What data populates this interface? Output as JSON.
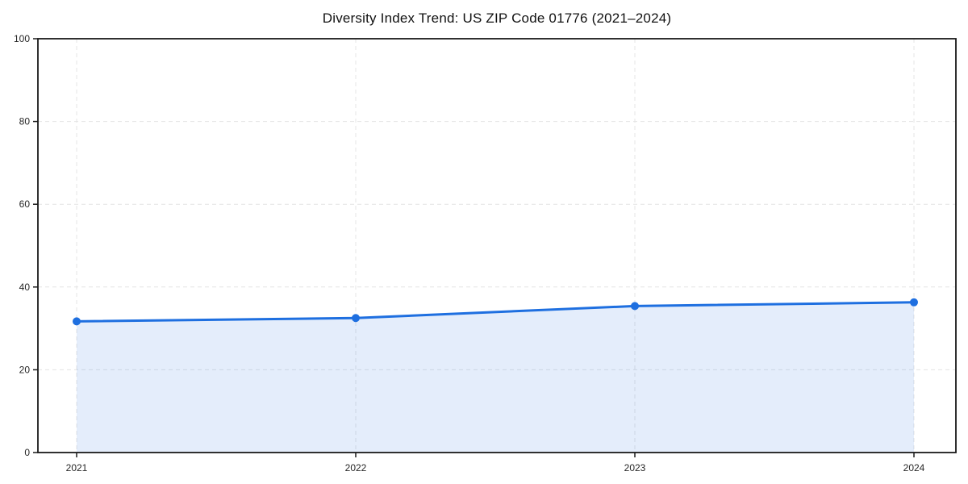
{
  "page": {
    "background_color": "#ffffff"
  },
  "chart_data": {
    "type": "area",
    "title": "Diversity Index Trend: US ZIP Code 01776 (2021–2024)",
    "categories": [
      "2021",
      "2022",
      "2023",
      "2024"
    ],
    "series": [
      {
        "name": "Diversity Index",
        "values": [
          31.7,
          32.5,
          35.4,
          36.3
        ]
      }
    ],
    "xlabel": "",
    "ylabel": "",
    "ylim": [
      0,
      100
    ],
    "yticks": [
      0,
      20,
      40,
      60,
      80,
      100
    ],
    "grid": true,
    "grid_style": "dashed",
    "legend_position": "none",
    "line_color": "#1e6fe0",
    "fill_color": "#1e6fe0",
    "fill_opacity": 0.12,
    "marker": "circle",
    "marker_radius": 5,
    "line_width": 3,
    "spine_color": "#1a1a1a",
    "gridline_color": "#e4e4e4",
    "tick_label_color": "#262626",
    "title_color": "#111111"
  }
}
